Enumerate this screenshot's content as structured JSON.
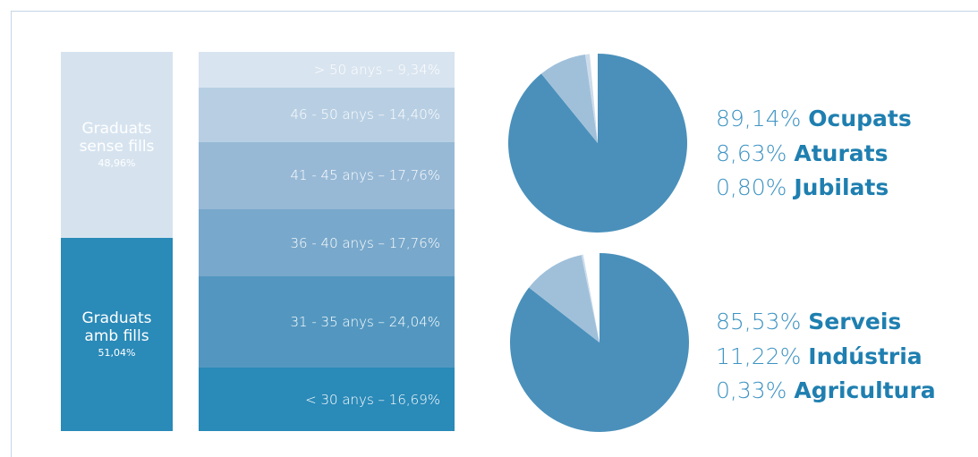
{
  "chart_data": [
    {
      "type": "stacked_bar",
      "series": [
        {
          "name": "Graduats amb fills",
          "color": "#2a8ab8",
          "values": [
            51.04
          ],
          "value_labels": [
            "51,04%"
          ]
        },
        {
          "name": "Graduats sense fills",
          "color": "#d6e3ef",
          "values": [
            48.96
          ],
          "value_labels": [
            "48,96%"
          ]
        }
      ]
    },
    {
      "type": "stacked_bar",
      "series": [
        {
          "color": "#2a8ab8",
          "values": [
            16.69
          ],
          "value_labels": [
            "< 30 anys – 16,69%"
          ]
        },
        {
          "color": "#5397c0",
          "values": [
            24.04
          ],
          "value_labels": [
            "31 - 35 anys – 24,04%"
          ]
        },
        {
          "color": "#78a8cb",
          "values": [
            17.76
          ],
          "value_labels": [
            "36 - 40 anys – 17,76%"
          ]
        },
        {
          "color": "#97b9d6",
          "values": [
            17.76
          ],
          "value_labels": [
            "41 - 45 anys – 17,76%"
          ]
        },
        {
          "color": "#b8cfe3",
          "values": [
            14.4
          ],
          "value_labels": [
            "46 - 50 anys – 14,40%"
          ]
        },
        {
          "color": "#d8e4ef",
          "values": [
            9.34
          ],
          "value_labels": [
            "> 50 anys – 9,34%"
          ]
        }
      ]
    },
    {
      "type": "pie",
      "categories": [
        "Ocupats",
        "Aturats",
        "Jubilats"
      ],
      "values": [
        89.14,
        8.63,
        0.8
      ],
      "value_labels": [
        "89,14%",
        "8,63%",
        "0,80%"
      ],
      "colors": [
        "#4a90bb",
        "#a0c0da",
        "#cddceb"
      ]
    },
    {
      "type": "pie",
      "categories": [
        "Serveis",
        "Indústria",
        "Agricultura"
      ],
      "values": [
        85.53,
        11.22,
        0.33
      ],
      "value_labels": [
        "85,53%",
        "11,22%",
        "0,33%"
      ],
      "colors": [
        "#4a90bb",
        "#a0c0da",
        "#cddceb"
      ]
    }
  ]
}
